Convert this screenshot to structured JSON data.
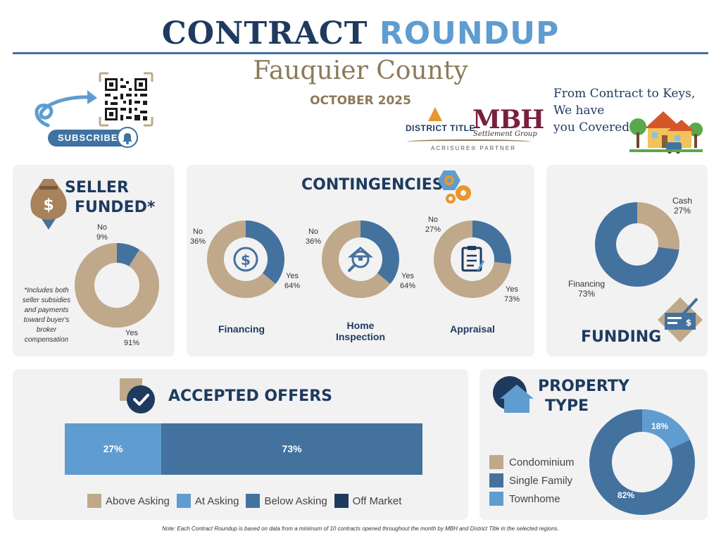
{
  "header": {
    "title_part1": "CONTRACT",
    "title_part2": "ROUNDUP",
    "county": "Fauquier County",
    "month": "OCTOBER 2025",
    "subscribe_label": "SUBSCRIBE",
    "logo_district": "DISTRICT TITLE",
    "logo_mbh": "MBH",
    "logo_mbh_sub": "Settlement Group",
    "logo_partner": "ACRISURE® PARTNER",
    "tagline": [
      "From Contract to Keys,",
      "We have",
      "you Covered"
    ]
  },
  "colors": {
    "tan": "#bfa98a",
    "mid_blue": "#44729e",
    "light_blue": "#5f9cd0",
    "navy": "#1e3a5f",
    "card_bg": "#f2f2f3"
  },
  "icons": {
    "qr": "qr-code-icon",
    "bell": "bell-icon",
    "money_bag": "money-bag-icon",
    "gears": "gears-icon",
    "check": "check-icon",
    "house": "house-icon",
    "cheque": "cheque-icon"
  },
  "seller_funded": {
    "title_line1": "SELLER",
    "title_line2": "FUNDED*",
    "note": [
      "*Includes both",
      "seller subsidies",
      "and payments",
      "toward buyer's",
      "broker",
      "compensation"
    ]
  },
  "contingencies": {
    "title": "CONTINGENCIES",
    "charts": [
      {
        "key": "financing",
        "label_line1": "Financing",
        "label_line2": ""
      },
      {
        "key": "inspection",
        "label_line1": "Home",
        "label_line2": "Inspection"
      },
      {
        "key": "appraisal",
        "label_line1": "Appraisal",
        "label_line2": ""
      }
    ]
  },
  "funding": {
    "title": "FUNDING"
  },
  "accepted_offers": {
    "title": "ACCEPTED OFFERS"
  },
  "property_type": {
    "title_line1": "PROPERTY",
    "title_line2": "TYPE"
  },
  "chart_data": [
    {
      "id": "seller_funded",
      "type": "pie",
      "slices": [
        {
          "name": "Yes",
          "value": 91,
          "color": "#bfa98a",
          "label_top": "Yes",
          "label_bottom": "91%"
        },
        {
          "name": "No",
          "value": 9,
          "color": "#44729e",
          "label_top": "No",
          "label_bottom": "9%"
        }
      ]
    },
    {
      "id": "contingency_financing",
      "type": "pie",
      "slices": [
        {
          "name": "Yes",
          "value": 64,
          "color": "#bfa98a",
          "label_top": "Yes",
          "label_bottom": "64%"
        },
        {
          "name": "No",
          "value": 36,
          "color": "#44729e",
          "label_top": "No",
          "label_bottom": "36%"
        }
      ]
    },
    {
      "id": "contingency_inspection",
      "type": "pie",
      "slices": [
        {
          "name": "Yes",
          "value": 64,
          "color": "#bfa98a",
          "label_top": "Yes",
          "label_bottom": "64%"
        },
        {
          "name": "No",
          "value": 36,
          "color": "#44729e",
          "label_top": "No",
          "label_bottom": "36%"
        }
      ]
    },
    {
      "id": "contingency_appraisal",
      "type": "pie",
      "slices": [
        {
          "name": "Yes",
          "value": 73,
          "color": "#bfa98a",
          "label_top": "Yes",
          "label_bottom": "73%"
        },
        {
          "name": "No",
          "value": 27,
          "color": "#44729e",
          "label_top": "No",
          "label_bottom": "27%"
        }
      ]
    },
    {
      "id": "funding",
      "type": "pie",
      "slices": [
        {
          "name": "Cash",
          "value": 27,
          "color": "#bfa98a",
          "label_top": "Cash",
          "label_bottom": "27%"
        },
        {
          "name": "Financing",
          "value": 73,
          "color": "#44729e",
          "label_top": "Financing",
          "label_bottom": "73%"
        }
      ]
    },
    {
      "id": "accepted_offers",
      "type": "bar",
      "orientation": "horizontal-stacked",
      "segments": [
        {
          "name": "Above Asking",
          "value": 0,
          "color": "#bfa98a",
          "label": ""
        },
        {
          "name": "At Asking",
          "value": 27,
          "color": "#5f9cd0",
          "label": "27%"
        },
        {
          "name": "Below Asking",
          "value": 73,
          "color": "#44729e",
          "label": "73%"
        },
        {
          "name": "Off Market",
          "value": 0,
          "color": "#1e3a5f",
          "label": ""
        }
      ],
      "legend": [
        "Above Asking",
        "At Asking",
        "Below Asking",
        "Off Market"
      ],
      "legend_placement": "bottom"
    },
    {
      "id": "property_type",
      "type": "pie",
      "slices": [
        {
          "name": "Condominium",
          "value": 0,
          "color": "#bfa98a",
          "label": ""
        },
        {
          "name": "Townhome",
          "value": 18,
          "color": "#5f9cd0",
          "label": "18%"
        },
        {
          "name": "Single Family",
          "value": 82,
          "color": "#44729e",
          "label": "82%"
        }
      ],
      "legend": [
        "Condominium",
        "Single Family",
        "Townhome"
      ],
      "legend_placement": "left"
    }
  ],
  "footnote": "Note: Each Contract Roundup is based on data from a minimum of 10 contracts opened throughout the month by MBH and District Title in the selected regions."
}
